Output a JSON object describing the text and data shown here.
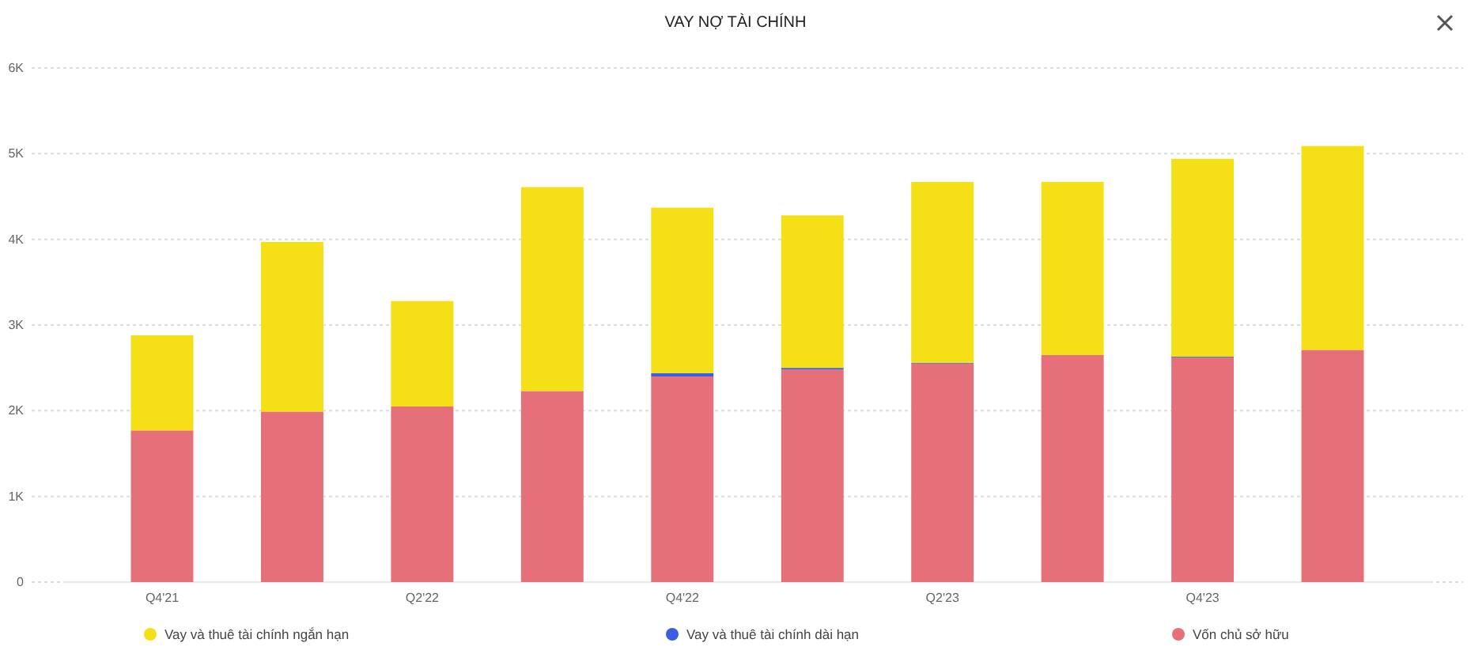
{
  "chart_data": {
    "type": "bar",
    "title": "VAY NỢ TÀI CHÍNH",
    "stacked": true,
    "categories": [
      "Q4'21",
      null,
      "Q2'22",
      null,
      "Q4'22",
      null,
      "Q2'23",
      null,
      "Q4'23",
      null
    ],
    "series": [
      {
        "name": "Vốn chủ sở hữu",
        "color": "#e67079",
        "values": [
          1770,
          1990,
          2050,
          2230,
          2400,
          2480,
          2550,
          2650,
          2620,
          2710
        ]
      },
      {
        "name": "Vay và thuê tài chính dài hạn",
        "color": "#3d5de0",
        "values": [
          0,
          0,
          0,
          0,
          40,
          20,
          10,
          0,
          10,
          0
        ]
      },
      {
        "name": "Vay và thuê tài chính ngắn hạn",
        "color": "#f5df16",
        "values": [
          1110,
          1980,
          1230,
          2380,
          1930,
          1780,
          2110,
          2020,
          2310,
          2380
        ]
      }
    ],
    "ylim": [
      0,
      6000
    ],
    "yticks": [
      0,
      {
        "value": 1000,
        "label": "1K"
      },
      {
        "value": 2000,
        "label": "2K"
      },
      {
        "value": 3000,
        "label": "3K"
      },
      {
        "value": 4000,
        "label": "4K"
      },
      {
        "value": 5000,
        "label": "5K"
      },
      {
        "value": 6000,
        "label": "6K"
      }
    ],
    "grid": "y",
    "legend": "bottom"
  }
}
